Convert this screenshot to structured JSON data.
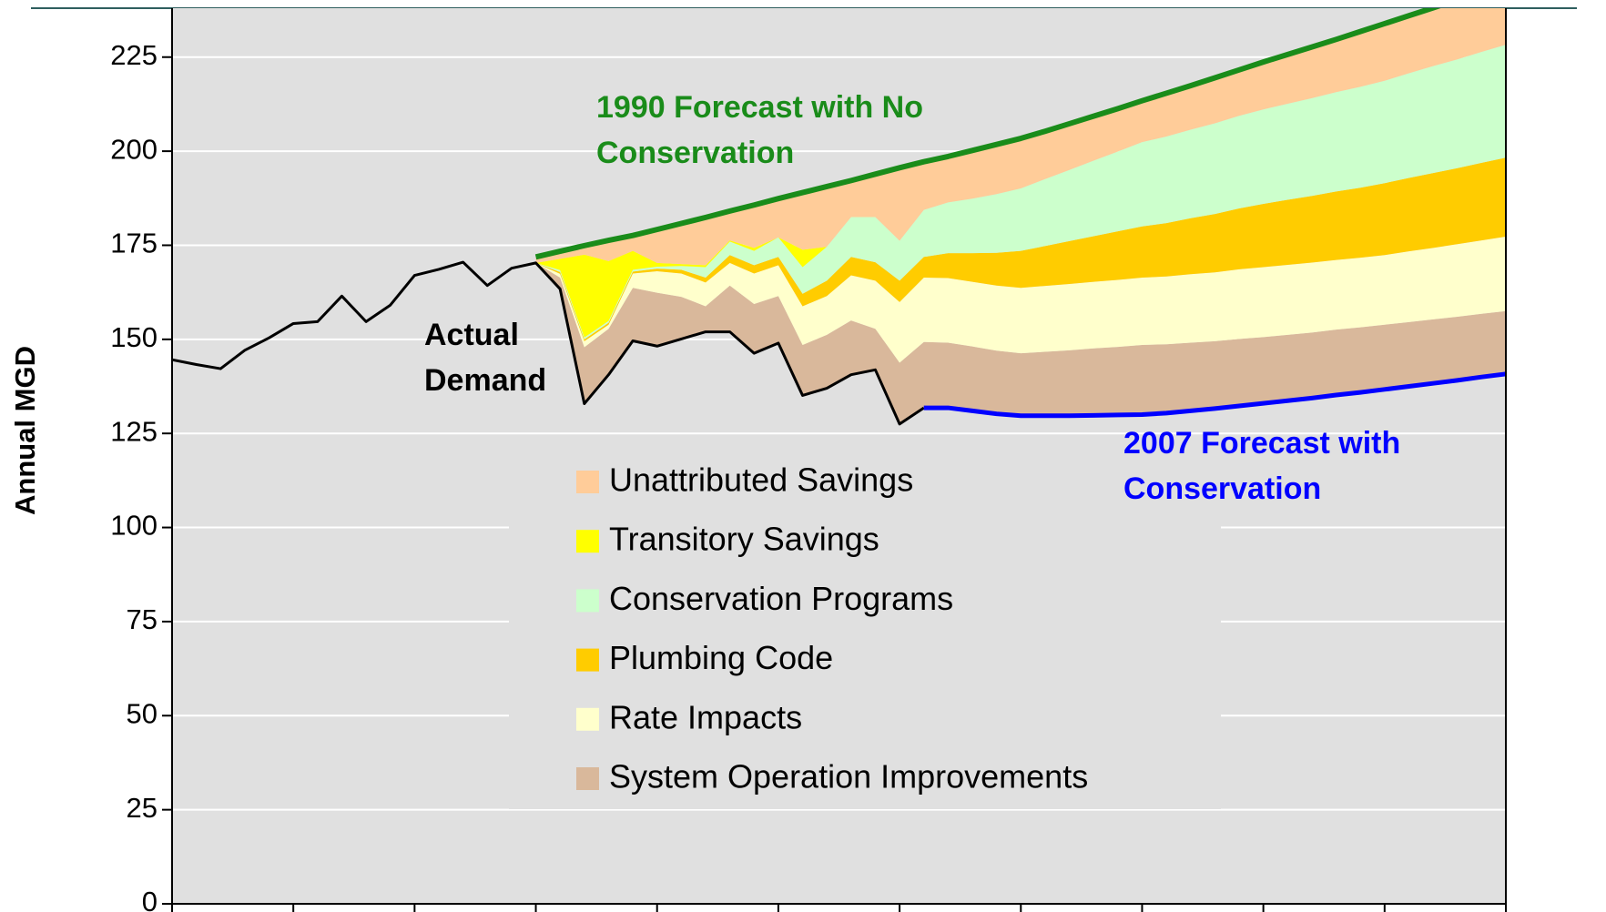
{
  "chart_data": {
    "type": "area",
    "y_label": "Annual MGD",
    "ylim": [
      0,
      238
    ],
    "yticks": [
      0,
      25,
      50,
      75,
      100,
      125,
      150,
      175,
      200,
      225
    ],
    "grid": true,
    "legend": "center",
    "categories": [
      null,
      null,
      null,
      null,
      null,
      null,
      null,
      null,
      null,
      null,
      null,
      null,
      null,
      null,
      null,
      null,
      null,
      null,
      null,
      null,
      null,
      null,
      null,
      null,
      null,
      null,
      null,
      null,
      null,
      null,
      null,
      null,
      null,
      null,
      null,
      null,
      null,
      null,
      null,
      null,
      null,
      null,
      null,
      null,
      null,
      null,
      null,
      null,
      null,
      null,
      null,
      null,
      null,
      null,
      null,
      null
    ],
    "series": [
      {
        "name": "Actual Demand",
        "type": "line",
        "role": "base",
        "color": "#000000",
        "values": [
          144.6,
          143.3,
          142.2,
          147.1,
          150.4,
          154.2,
          154.7,
          161.5,
          154.7,
          159.1,
          167,
          168.6,
          170.5,
          164.3,
          168.9,
          170.3,
          163.4,
          132.9,
          140.6,
          149.6,
          148.2,
          150.1,
          152,
          152,
          146.3,
          149,
          135.1,
          137,
          140.6,
          141.9,
          127.5,
          131.8,
          null,
          null,
          null,
          null,
          null,
          null,
          null,
          null,
          null,
          null,
          null,
          null,
          null,
          null,
          null,
          null,
          null,
          null,
          null,
          null,
          null,
          null,
          null,
          null
        ]
      },
      {
        "name": "2007 Forecast with Conservation",
        "type": "line",
        "role": "base",
        "color": "#0000ff",
        "values": [
          null,
          null,
          null,
          null,
          null,
          null,
          null,
          null,
          null,
          null,
          null,
          null,
          null,
          null,
          null,
          null,
          null,
          null,
          null,
          null,
          null,
          null,
          null,
          null,
          null,
          null,
          null,
          null,
          null,
          null,
          null,
          131.8,
          131.8,
          131,
          130.2,
          129.7,
          129.7,
          129.7,
          129.8,
          129.9,
          130,
          130.4,
          131,
          131.6,
          132.3,
          133,
          133.7,
          134.4,
          135.2,
          135.9,
          136.7,
          137.5,
          138.3,
          139.1,
          140,
          140.8
        ]
      },
      {
        "name": "1990 Forecast with No Conservation",
        "type": "line",
        "color": "#1a8c1a",
        "values": [
          null,
          null,
          null,
          null,
          null,
          null,
          null,
          null,
          null,
          null,
          null,
          null,
          null,
          null,
          null,
          171.9,
          173.4,
          174.9,
          176.3,
          177.6,
          179.2,
          180.8,
          182.4,
          184.1,
          185.7,
          187.4,
          189,
          190.6,
          192.2,
          193.9,
          195.6,
          197.2,
          198.6,
          200.2,
          201.8,
          203.4,
          205.3,
          207.3,
          209.3,
          211.3,
          213.4,
          215.4,
          217.4,
          219.5,
          221.6,
          223.7,
          225.7,
          227.7,
          229.7,
          231.8,
          233.9,
          236,
          238.1,
          240.2,
          242.3,
          244.4
        ]
      },
      {
        "name": "System Operation Improvements",
        "type": "area",
        "color": "#d9b89b",
        "values": [
          null,
          null,
          null,
          null,
          null,
          null,
          null,
          null,
          null,
          null,
          null,
          null,
          null,
          null,
          null,
          0,
          3,
          15,
          12.2,
          14.1,
          14.2,
          11.2,
          6.8,
          12.3,
          13.1,
          12.5,
          13.4,
          14.2,
          14.4,
          10.9,
          16.3,
          17.5,
          17.3,
          17.1,
          16.8,
          16.6,
          17,
          17.4,
          17.8,
          18.1,
          18.5,
          18.3,
          18.1,
          17.9,
          17.8,
          17.6,
          17.5,
          17.4,
          17.4,
          17.3,
          17.2,
          17.1,
          17,
          16.9,
          16.8,
          16.7
        ]
      },
      {
        "name": "Rate Impacts",
        "type": "area",
        "color": "#ffffcc",
        "values": [
          null,
          null,
          null,
          null,
          null,
          null,
          null,
          null,
          null,
          null,
          null,
          null,
          null,
          null,
          null,
          0,
          1,
          1.6,
          1.1,
          3.8,
          5.7,
          6.2,
          6.3,
          6,
          8.1,
          8.2,
          10.3,
          10.3,
          12,
          12.8,
          16.1,
          17.1,
          17.2,
          17.2,
          17.3,
          17.4,
          17.5,
          17.6,
          17.7,
          17.8,
          17.9,
          18.0,
          18.2,
          18.3,
          18.5,
          18.6,
          18.6,
          18.6,
          18.5,
          18.5,
          18.5,
          18.8,
          19,
          19.3,
          19.5,
          19.8
        ]
      },
      {
        "name": "Plumbing Code",
        "type": "area",
        "color": "#ffcc00",
        "values": [
          null,
          null,
          null,
          null,
          null,
          null,
          null,
          null,
          null,
          null,
          null,
          null,
          null,
          null,
          null,
          0,
          0.5,
          0.5,
          0.5,
          0.5,
          0.7,
          1,
          1.3,
          2.1,
          2.2,
          2.2,
          3.3,
          4.1,
          4.9,
          4.9,
          5.7,
          5.5,
          6.6,
          7.6,
          8.7,
          9.8,
          10.6,
          11.4,
          12.1,
          12.9,
          13.6,
          14.2,
          14.9,
          15.5,
          16.2,
          16.8,
          17.3,
          17.7,
          18.2,
          18.6,
          19.1,
          19.5,
          19.9,
          20.2,
          20.6,
          21
        ]
      },
      {
        "name": "Conservation Programs",
        "type": "area",
        "color": "#ccffcc",
        "values": [
          null,
          null,
          null,
          null,
          null,
          null,
          null,
          null,
          null,
          null,
          null,
          null,
          null,
          null,
          null,
          0,
          0.5,
          0.5,
          0.5,
          0.5,
          0.5,
          1,
          2.8,
          3.6,
          3.8,
          5.2,
          7.1,
          9,
          10.6,
          12,
          10.6,
          12.5,
          13.5,
          14.5,
          15.6,
          16.6,
          17.8,
          18.9,
          20.1,
          21.2,
          22.4,
          23,
          23.5,
          24.1,
          24.6,
          25.1,
          25.5,
          26,
          26.4,
          26.8,
          27.2,
          27.8,
          28.4,
          28.9,
          29.5,
          30
        ]
      },
      {
        "name": "Transitory Savings",
        "type": "area",
        "color": "#ffff00",
        "values": [
          null,
          null,
          null,
          null,
          null,
          null,
          null,
          null,
          null,
          null,
          null,
          null,
          null,
          null,
          null,
          0,
          3,
          22,
          15.9,
          5,
          1,
          0.5,
          0.5,
          0.3,
          0.8,
          0,
          4.6,
          0,
          0,
          0,
          0,
          0,
          0,
          0,
          0,
          0,
          0,
          0,
          0,
          0,
          0,
          0,
          0,
          0,
          0,
          0,
          0,
          0,
          0,
          0,
          0,
          0,
          0,
          0,
          0,
          0
        ]
      },
      {
        "name": "Unattributed Savings",
        "type": "area",
        "color": "#ffcc99",
        "values": [
          null,
          null,
          null,
          null,
          null,
          null,
          null,
          null,
          null,
          null,
          null,
          null,
          null,
          null,
          null,
          1.6,
          2,
          2.4,
          5.5,
          4.1,
          8.9,
          10.8,
          12.7,
          7.8,
          11.4,
          10.3,
          15.2,
          16,
          9.7,
          11.4,
          19.4,
          12.8,
          12.2,
          12.8,
          13.2,
          13.3,
          12.7,
          12.3,
          11.8,
          11.4,
          11,
          11.5,
          11.7,
          12.1,
          12.2,
          12.6,
          13.1,
          13.6,
          14,
          14.7,
          15.2,
          15.3,
          15.5,
          15.8,
          15.9,
          16.1
        ]
      }
    ]
  }
}
